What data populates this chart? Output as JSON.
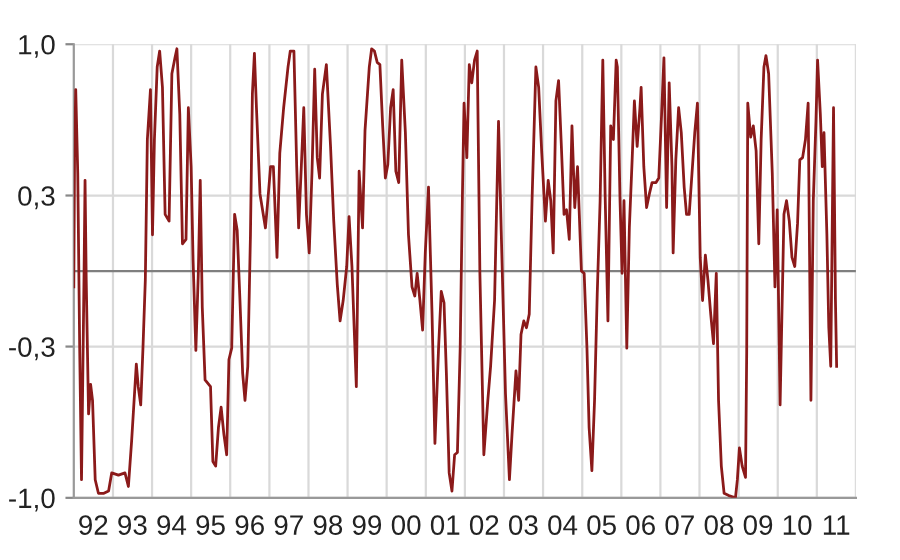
{
  "chart_data": {
    "type": "line",
    "xlim": [
      "1992-01-01",
      "2012-01-01"
    ],
    "ylim": [
      -1,
      1
    ],
    "yticks": [
      {
        "value": 1,
        "label": "1,0"
      },
      {
        "value": 0.333,
        "label": "0,3"
      },
      {
        "value": -0.333,
        "label": "-0,3"
      },
      {
        "value": -1,
        "label": "-1,0"
      }
    ],
    "xticks": [
      {
        "value": "1992-07-01",
        "label": "92"
      },
      {
        "value": "1993-07-01",
        "label": "93"
      },
      {
        "value": "1994-07-01",
        "label": "94"
      },
      {
        "value": "1995-07-01",
        "label": "95"
      },
      {
        "value": "1996-07-01",
        "label": "96"
      },
      {
        "value": "1997-07-01",
        "label": "97"
      },
      {
        "value": "1998-07-01",
        "label": "98"
      },
      {
        "value": "1999-07-01",
        "label": "99"
      },
      {
        "value": "2000-07-01",
        "label": "00"
      },
      {
        "value": "2001-07-01",
        "label": "01"
      },
      {
        "value": "2002-07-01",
        "label": "02"
      },
      {
        "value": "2003-07-01",
        "label": "03"
      },
      {
        "value": "2004-07-01",
        "label": "04"
      },
      {
        "value": "2005-07-01",
        "label": "05"
      },
      {
        "value": "2006-07-01",
        "label": "06"
      },
      {
        "value": "2007-07-01",
        "label": "07"
      },
      {
        "value": "2008-07-01",
        "label": "08"
      },
      {
        "value": "2009-07-01",
        "label": "09"
      },
      {
        "value": "2010-07-01",
        "label": "10"
      },
      {
        "value": "2011-07-01",
        "label": "11"
      },
      {
        "value": "1993-01-01",
        "label": null
      },
      {
        "value": "1994-01-01",
        "label": null
      },
      {
        "value": "1995-01-01",
        "label": null
      },
      {
        "value": "1996-01-01",
        "label": null
      },
      {
        "value": "1997-01-01",
        "label": null
      },
      {
        "value": "1998-01-01",
        "label": null
      },
      {
        "value": "1999-01-01",
        "label": null
      },
      {
        "value": "2000-01-01",
        "label": null
      },
      {
        "value": "2001-01-01",
        "label": null
      },
      {
        "value": "2002-01-01",
        "label": null
      },
      {
        "value": "2003-01-01",
        "label": null
      },
      {
        "value": "2004-01-01",
        "label": null
      },
      {
        "value": "2005-01-01",
        "label": null
      },
      {
        "value": "2006-01-01",
        "label": null
      },
      {
        "value": "2007-01-01",
        "label": null
      },
      {
        "value": "2008-01-01",
        "label": null
      },
      {
        "value": "2009-01-01",
        "label": null
      },
      {
        "value": "2010-01-01",
        "label": null
      },
      {
        "value": "2011-01-01",
        "label": null
      },
      {
        "value": "2012-01-01",
        "label": null
      }
    ],
    "grid": true,
    "legend": false,
    "marker": "none",
    "line_style": "solid",
    "ref_lines": [
      {
        "axis": "y",
        "value": 0,
        "color": "#7f7f7f"
      }
    ],
    "series": [
      {
        "color": "#8b1a1a",
        "x": [
          "1992-01-01",
          "1992-01-08",
          "1992-01-19",
          "1992-02-07",
          "1992-02-25",
          "1992-03-13",
          "1992-04-05",
          "1992-04-15",
          "1992-04-26",
          "1992-05-18",
          "1992-06-06",
          "1992-06-24",
          "1992-07-19",
          "1992-08-18",
          "1992-10-08",
          "1992-11-21",
          "1992-12-20",
          "1993-02-21",
          "1993-04-23",
          "1993-05-25",
          "1993-06-24",
          "1993-08-07",
          "1993-08-25",
          "1993-09-17",
          "1993-10-08",
          "1993-10-30",
          "1993-11-18",
          "1993-12-17",
          "1994-01-05",
          "1994-01-23",
          "1994-02-18",
          "1994-03-13",
          "1994-04-08",
          "1994-05-03",
          "1994-06-09",
          "1994-07-05",
          "1994-08-03",
          "1994-08-21",
          "1994-09-17",
          "1994-10-12",
          "1994-11-14",
          "1994-12-06",
          "1995-01-01",
          "1995-01-19",
          "1995-02-14",
          "1995-03-09",
          "1995-03-27",
          "1995-04-15",
          "1995-05-11",
          "1995-07-01",
          "1995-07-23",
          "1995-08-18",
          "1995-09-13",
          "1995-10-08",
          "1995-11-03",
          "1995-11-29",
          "1995-12-20",
          "1996-01-15",
          "1996-02-11",
          "1996-03-06",
          "1996-04-01",
          "1996-04-26",
          "1996-05-18",
          "1996-06-13",
          "1996-07-08",
          "1996-07-26",
          "1996-08-14",
          "1996-09-02",
          "1996-10-05",
          "1996-11-25",
          "1996-12-17",
          "1997-01-12",
          "1997-02-07",
          "1997-03-13",
          "1997-04-08",
          "1997-05-14",
          "1997-06-24",
          "1997-07-15",
          "1997-08-18",
          "1997-09-13",
          "1997-10-01",
          "1997-10-26",
          "1997-11-18",
          "1997-12-13",
          "1998-01-08",
          "1998-02-03",
          "1998-02-28",
          "1998-03-24",
          "1998-04-15",
          "1998-05-11",
          "1998-06-17",
          "1998-07-26",
          "1998-08-25",
          "1998-09-27",
          "1998-10-23",
          "1998-11-21",
          "1998-12-24",
          "1999-01-15",
          "1999-02-11",
          "1999-03-06",
          "1999-03-24",
          "1999-04-19",
          "1999-05-21",
          "1999-06-13",
          "1999-07-23",
          "1999-08-14",
          "1999-09-09",
          "1999-10-05",
          "1999-10-30",
          "1999-11-25",
          "1999-12-20",
          "2000-01-12",
          "2000-02-07",
          "2000-03-02",
          "2000-03-27",
          "2000-04-23",
          "2000-05-21",
          "2000-06-24",
          "2000-07-23",
          "2000-08-25",
          "2000-09-20",
          "2000-10-12",
          "2000-11-07",
          "2000-12-02",
          "2000-12-27",
          "2001-01-26",
          "2001-02-28",
          "2001-03-27",
          "2001-04-30",
          "2001-05-25",
          "2001-06-20",
          "2001-07-12",
          "2001-08-07",
          "2001-09-02",
          "2001-09-27",
          "2001-10-23",
          "2001-11-18",
          "2001-12-09",
          "2001-12-24",
          "2002-01-19",
          "2002-02-11",
          "2002-03-06",
          "2002-04-01",
          "2002-04-26",
          "2002-05-21",
          "2002-06-27",
          "2002-08-03",
          "2002-08-29",
          "2002-10-05",
          "2002-11-11",
          "2002-12-06",
          "2003-01-15",
          "2003-02-21",
          "2003-03-17",
          "2003-04-23",
          "2003-05-18",
          "2003-06-09",
          "2003-07-05",
          "2003-07-30",
          "2003-08-25",
          "2003-09-20",
          "2003-10-26",
          "2003-11-21",
          "2003-12-20",
          "2004-01-23",
          "2004-02-18",
          "2004-03-13",
          "2004-04-05",
          "2004-04-30",
          "2004-05-25",
          "2004-06-20",
          "2004-07-15",
          "2004-08-07",
          "2004-09-02",
          "2004-09-27",
          "2004-10-23",
          "2004-11-18",
          "2004-12-24",
          "2005-01-19",
          "2005-02-14",
          "2005-03-06",
          "2005-04-01",
          "2005-04-26",
          "2005-05-21",
          "2005-06-17",
          "2005-07-12",
          "2005-08-03",
          "2005-08-29",
          "2005-09-24",
          "2005-10-19",
          "2005-11-14",
          "2005-11-25",
          "2005-12-20",
          "2006-01-08",
          "2006-01-26",
          "2006-02-21",
          "2006-03-17",
          "2006-04-12",
          "2006-05-03",
          "2006-05-29",
          "2006-06-24",
          "2006-07-05",
          "2006-07-30",
          "2006-08-25",
          "2006-09-20",
          "2006-10-15",
          "2006-11-21",
          "2006-12-17",
          "2007-01-12",
          "2007-02-03",
          "2007-02-28",
          "2007-03-24",
          "2007-04-19",
          "2007-04-30",
          "2007-05-25",
          "2007-06-20",
          "2007-07-15",
          "2007-08-11",
          "2007-09-02",
          "2007-09-27",
          "2007-10-23",
          "2007-11-18",
          "2007-12-13",
          "2008-01-08",
          "2008-01-30",
          "2008-02-25",
          "2008-03-20",
          "2008-04-15",
          "2008-05-11",
          "2008-06-06",
          "2008-06-27",
          "2008-07-23",
          "2008-08-18",
          "2008-10-01",
          "2008-12-02",
          "2008-12-20",
          "2009-01-08",
          "2009-02-03",
          "2009-03-06",
          "2009-03-17",
          "2009-03-27",
          "2009-04-23",
          "2009-05-18",
          "2009-06-13",
          "2009-07-08",
          "2009-07-30",
          "2009-08-25",
          "2009-09-13",
          "2009-10-08",
          "2009-11-11",
          "2009-12-06",
          "2009-12-27",
          "2010-01-23",
          "2010-02-28",
          "2010-03-24",
          "2010-04-19",
          "2010-05-14",
          "2010-06-09",
          "2010-07-05",
          "2010-07-26",
          "2010-08-21",
          "2010-09-17",
          "2010-10-12",
          "2010-11-07",
          "2010-11-29",
          "2010-12-24",
          "2011-01-08",
          "2011-02-03",
          "2011-02-21",
          "2011-03-09",
          "2011-04-05",
          "2011-04-23",
          "2011-05-11",
          "2011-06-06",
          "2011-06-24",
          "2011-07-05"
        ],
        "values": [
          -0.07,
          0.5,
          0.8,
          0.43,
          -0.34,
          -0.92,
          -0.04,
          0.4,
          -0.04,
          -0.63,
          -0.5,
          -0.57,
          -0.92,
          -0.98,
          -0.98,
          -0.97,
          -0.89,
          -0.9,
          -0.89,
          -0.95,
          -0.75,
          -0.41,
          -0.51,
          -0.59,
          -0.34,
          -0.04,
          0.58,
          0.8,
          0.16,
          0.58,
          0.9,
          0.97,
          0.81,
          0.25,
          0.22,
          0.87,
          0.94,
          0.98,
          0.69,
          0.12,
          0.14,
          0.72,
          0.46,
          0.05,
          -0.35,
          -0.01,
          0.4,
          -0.16,
          -0.48,
          -0.51,
          -0.84,
          -0.86,
          -0.69,
          -0.6,
          -0.72,
          -0.81,
          -0.39,
          -0.34,
          0.25,
          0.18,
          -0.13,
          -0.45,
          -0.57,
          -0.42,
          0.16,
          0.78,
          0.96,
          0.72,
          0.34,
          0.19,
          0.31,
          0.46,
          0.46,
          0.06,
          0.52,
          0.72,
          0.9,
          0.97,
          0.97,
          0.46,
          0.19,
          0.46,
          0.72,
          0.25,
          0.08,
          0.44,
          0.89,
          0.5,
          0.41,
          0.78,
          0.91,
          0.55,
          0.22,
          -0.06,
          -0.22,
          -0.13,
          0.02,
          0.24,
          0.02,
          -0.28,
          -0.51,
          0.44,
          0.19,
          0.62,
          0.9,
          0.98,
          0.97,
          0.92,
          0.91,
          0.64,
          0.41,
          0.47,
          0.72,
          0.8,
          0.44,
          0.39,
          0.93,
          0.61,
          0.16,
          -0.07,
          -0.11,
          -0.01,
          -0.13,
          -0.26,
          0.08,
          0.37,
          -0.19,
          -0.76,
          -0.34,
          -0.09,
          -0.14,
          -0.45,
          -0.89,
          -0.97,
          -0.81,
          -0.8,
          -0.34,
          0.34,
          0.74,
          0.5,
          0.91,
          0.83,
          0.93,
          0.97,
          -0.01,
          -0.81,
          -0.57,
          -0.42,
          -0.13,
          0.66,
          0.18,
          -0.54,
          -0.92,
          -0.72,
          -0.44,
          -0.57,
          -0.28,
          -0.22,
          -0.25,
          -0.19,
          0.31,
          0.9,
          0.81,
          0.52,
          0.22,
          0.4,
          0.31,
          0.08,
          0.75,
          0.84,
          0.55,
          0.25,
          0.27,
          0.14,
          0.64,
          0.28,
          0.46,
          0.0,
          -0.01,
          -0.34,
          -0.69,
          -0.88,
          -0.57,
          -0.1,
          0.31,
          0.93,
          0.33,
          -0.22,
          0.64,
          0.58,
          0.93,
          0.9,
          0.31,
          -0.01,
          0.31,
          -0.34,
          0.19,
          0.49,
          0.75,
          0.55,
          0.72,
          0.81,
          0.46,
          0.28,
          0.34,
          0.39,
          0.39,
          0.41,
          0.69,
          0.94,
          0.28,
          0.83,
          0.46,
          0.08,
          0.49,
          0.72,
          0.61,
          0.37,
          0.25,
          0.25,
          0.43,
          0.61,
          0.74,
          0.06,
          -0.13,
          0.07,
          -0.04,
          -0.19,
          -0.32,
          -0.01,
          -0.57,
          -0.86,
          -0.98,
          -0.99,
          -1.0,
          -0.92,
          -0.78,
          -0.86,
          -0.91,
          -0.36,
          0.74,
          0.59,
          0.64,
          0.53,
          0.12,
          0.58,
          0.9,
          0.95,
          0.87,
          0.43,
          -0.07,
          0.27,
          -0.59,
          0.25,
          0.31,
          0.22,
          0.06,
          0.02,
          0.21,
          0.49,
          0.5,
          0.58,
          0.74,
          -0.57,
          0.31,
          0.66,
          0.93,
          0.69,
          0.46,
          0.61,
          0.16,
          -0.25,
          -0.42,
          0.72,
          -0.13,
          -0.42
        ]
      }
    ]
  }
}
